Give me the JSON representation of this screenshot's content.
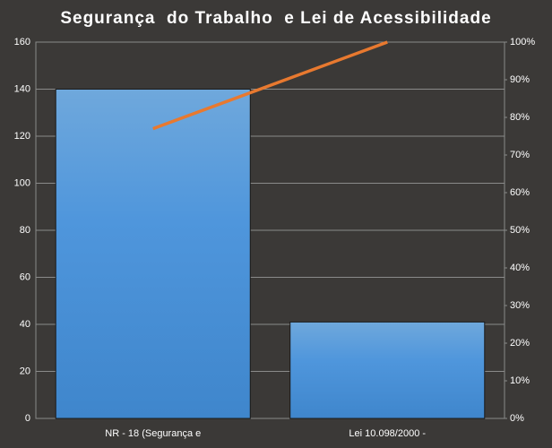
{
  "chart_data": {
    "type": "bar",
    "title": "Segurança  do Trabalho  e Lei de Acessibilidade",
    "categories": [
      "NR - 18 (Segurança e",
      "Lei 10.098/2000 -"
    ],
    "series": [
      {
        "type": "bar",
        "color": "#5b9bd5",
        "values": [
          140,
          41
        ]
      },
      {
        "type": "line",
        "color": "#e8792f",
        "values": [
          77,
          100
        ],
        "axis": "y2"
      }
    ],
    "ylim": [
      0,
      160
    ],
    "yticks": [
      0,
      20,
      40,
      60,
      80,
      100,
      120,
      140,
      160
    ],
    "y2lim": [
      0,
      100
    ],
    "y2ticks": [
      {
        "value": 0,
        "label": "0%"
      },
      {
        "value": 10,
        "label": "10%"
      },
      {
        "value": 20,
        "label": "20%"
      },
      {
        "value": 30,
        "label": "30%"
      },
      {
        "value": 40,
        "label": "40%"
      },
      {
        "value": 50,
        "label": "50%"
      },
      {
        "value": 60,
        "label": "60%"
      },
      {
        "value": 70,
        "label": "70%"
      },
      {
        "value": 80,
        "label": "80%"
      },
      {
        "value": 90,
        "label": "90%"
      },
      {
        "value": 100,
        "label": "100%"
      }
    ],
    "grid": true
  }
}
